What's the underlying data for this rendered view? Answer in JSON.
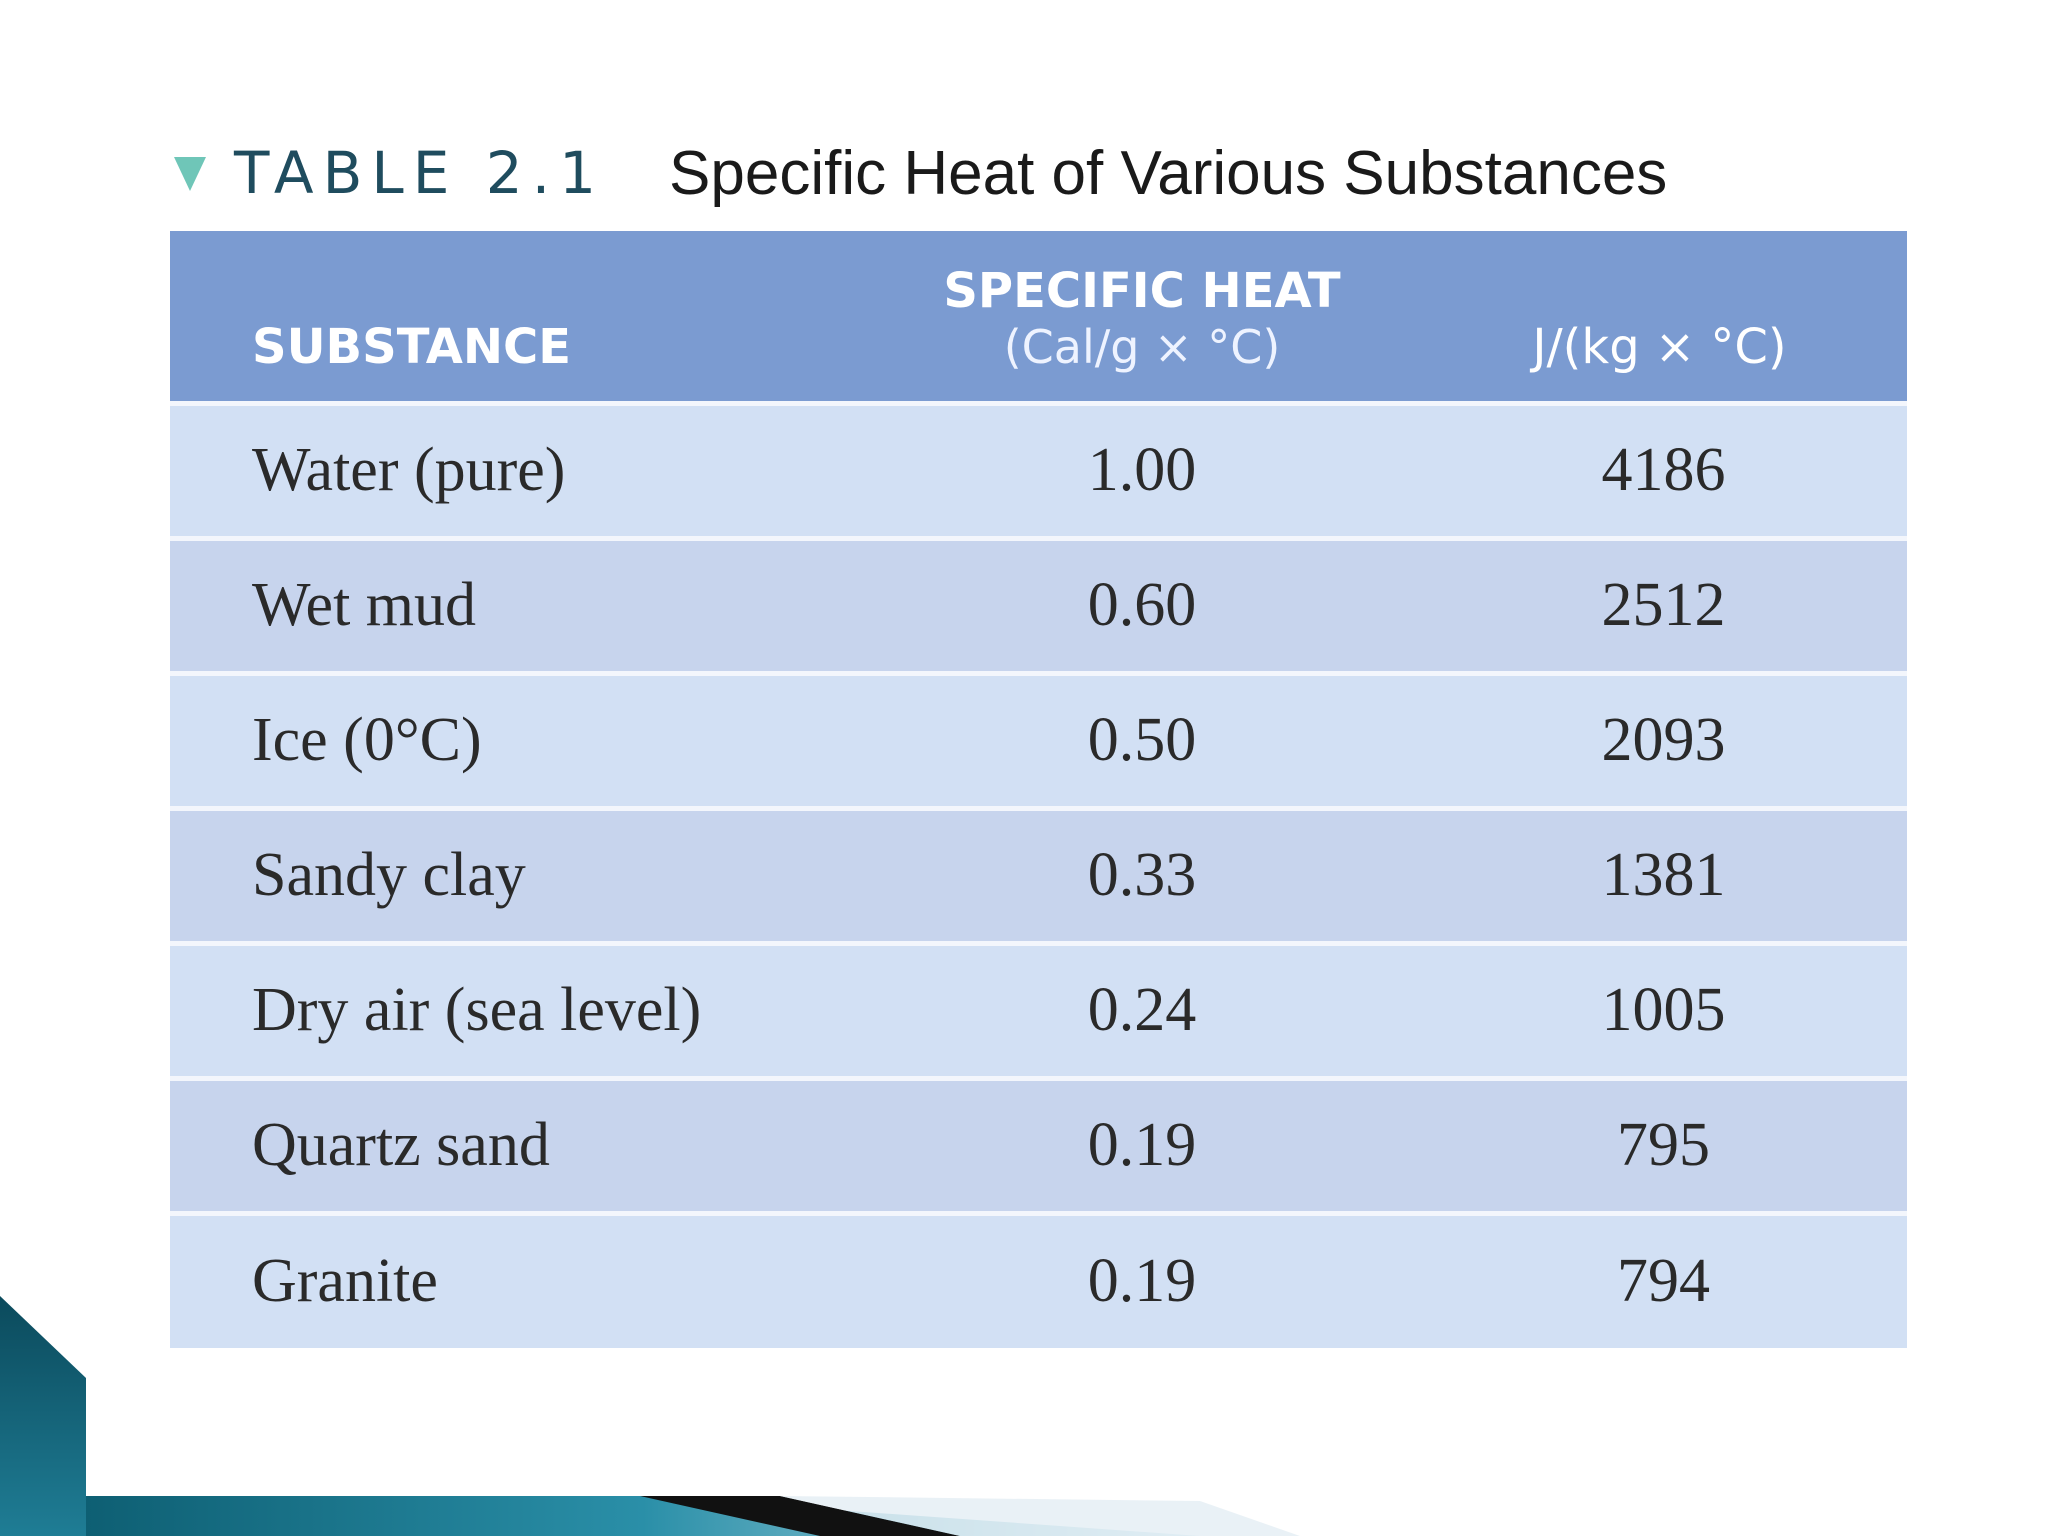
{
  "caption": {
    "label": "TABLE 2.1",
    "title": "Specific Heat of Various Substances"
  },
  "table": {
    "headers": {
      "substance": "SUBSTANCE",
      "specific_heat": "SPECIFIC HEAT",
      "cal_unit": "(Cal/g × °C)",
      "j_unit": "J/(kg × °C)"
    },
    "rows": [
      {
        "substance": "Water (pure)",
        "cal": "1.00",
        "j": "4186"
      },
      {
        "substance": "Wet mud",
        "cal": "0.60",
        "j": "2512"
      },
      {
        "substance": "Ice (0°C)",
        "cal": "0.50",
        "j": "2093"
      },
      {
        "substance": "Sandy clay",
        "cal": "0.33",
        "j": "1381"
      },
      {
        "substance": "Dry air (sea level)",
        "cal": "0.24",
        "j": "1005"
      },
      {
        "substance": "Quartz sand",
        "cal": "0.19",
        "j": "795"
      },
      {
        "substance": "Granite",
        "cal": "0.19",
        "j": "794"
      }
    ]
  },
  "colors": {
    "header_bg": "#7b9bd1",
    "row_light": "#d2e0f4",
    "row_dark": "#c7d4ed",
    "caption_arrow": "#6fc6b8"
  },
  "icons": {
    "caption_marker": "triangle-down-icon"
  }
}
